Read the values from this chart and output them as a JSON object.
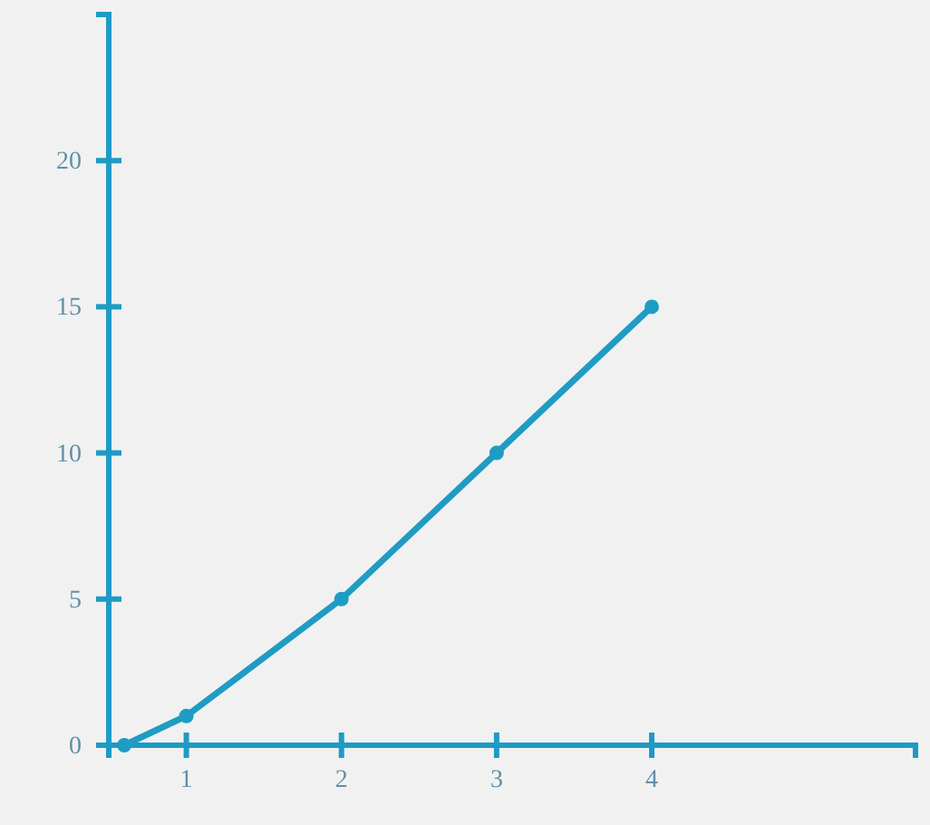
{
  "chart_data": {
    "type": "line",
    "x": [
      0.6,
      1,
      2,
      3,
      4
    ],
    "series": [
      {
        "color": "#1f9cc4",
        "values": [
          0,
          1,
          5,
          10,
          15
        ]
      }
    ],
    "xlim": [
      0.5,
      5.7
    ],
    "xticks": [
      1,
      2,
      3,
      4
    ],
    "ylim": [
      0,
      25
    ],
    "yticks": [
      {
        "value": 0,
        "label": "0"
      },
      5,
      10,
      15,
      20
    ],
    "marker": "circle",
    "grid": false
  }
}
